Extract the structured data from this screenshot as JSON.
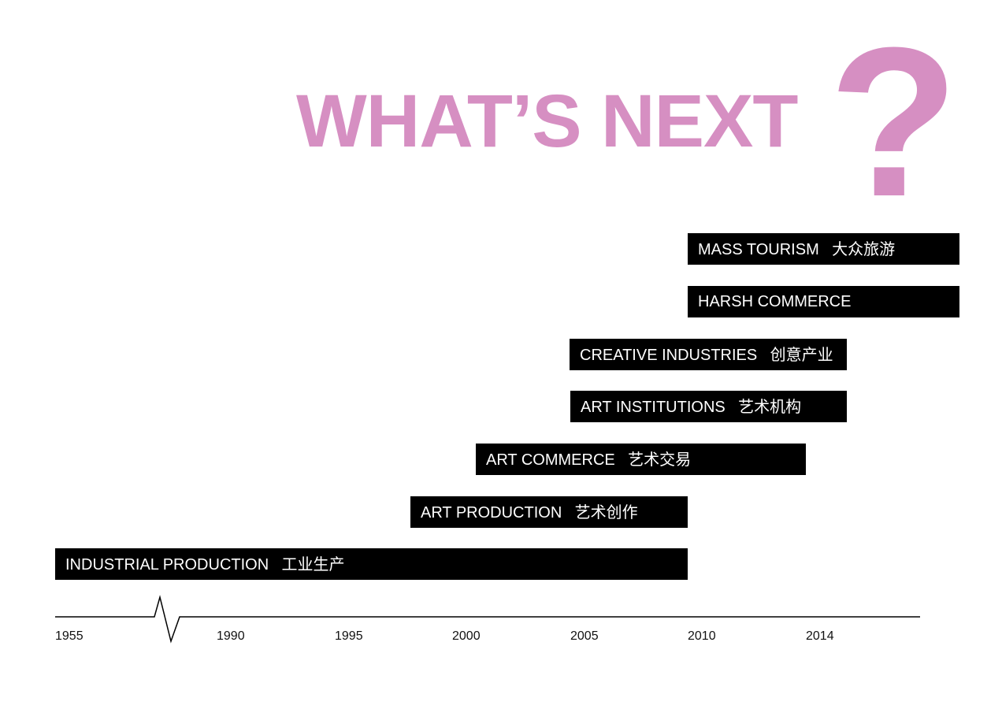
{
  "colors": {
    "accent": "#d68fc2",
    "bar": "#000000",
    "bar_text": "#ffffff",
    "axis": "#000000"
  },
  "title": {
    "text": "WHAT’S NEXT",
    "mark": "?"
  },
  "bars": [
    {
      "label": "MASS TOURISM",
      "zh": "大众旅游",
      "start": 2010,
      "end": 2016
    },
    {
      "label": "HARSH COMMERCE",
      "zh": "",
      "start": 2010,
      "end": 2016
    },
    {
      "label": "CREATIVE INDUSTRIES",
      "zh": "创意产业",
      "start": 2005,
      "end": 2016
    },
    {
      "label": "ART INSTITUTIONS",
      "zh": "艺术机构",
      "start": 2005,
      "end": 2016
    },
    {
      "label": "ART COMMERCE",
      "zh": "艺术交易",
      "start": 2001,
      "end": 2014
    },
    {
      "label": "ART PRODUCTION",
      "zh": "艺术创作",
      "start": 1998,
      "end": 2010
    },
    {
      "label": "INDUSTRIAL PRODUCTION",
      "zh": "工业生产",
      "start": 1955,
      "end": 2010
    }
  ],
  "axis": {
    "ticks": [
      "1955",
      "1990",
      "1995",
      "2000",
      "2005",
      "2010",
      "2014"
    ]
  }
}
